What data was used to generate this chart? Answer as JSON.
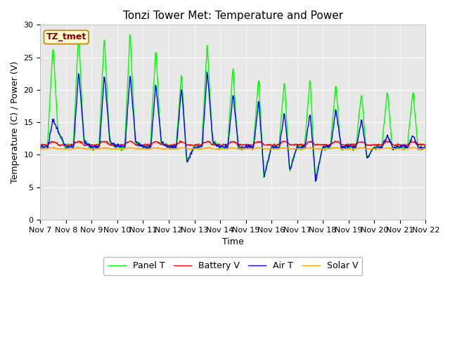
{
  "title": "Tonzi Tower Met: Temperature and Power",
  "xlabel": "Time",
  "ylabel": "Temperature (C) / Power (V)",
  "ylim": [
    0,
    30
  ],
  "yticks": [
    0,
    5,
    10,
    15,
    20,
    25,
    30
  ],
  "x_labels": [
    "Nov 7",
    "Nov 8",
    "Nov 9",
    "Nov 10",
    "Nov 11",
    "Nov 12",
    "Nov 13",
    "Nov 14",
    "Nov 15",
    "Nov 16",
    "Nov 17",
    "Nov 18",
    "Nov 19",
    "Nov 20",
    "Nov 21",
    "Nov 22"
  ],
  "panel_t_color": "#00FF00",
  "battery_v_color": "#FF0000",
  "air_t_color": "#0000FF",
  "solar_v_color": "#FFA500",
  "facecolor": "#E8E8E8",
  "legend_label_box": "TZ_tmet",
  "legend_labels": [
    "Panel T",
    "Battery V",
    "Air T",
    "Solar V"
  ],
  "title_fontsize": 11,
  "axis_fontsize": 9,
  "tick_fontsize": 8,
  "panel_peaks": [
    27,
    29,
    28.5,
    29,
    26.5,
    22.5,
    27.5,
    23.5,
    22,
    21.5,
    22,
    20.8,
    19.8,
    20,
    20
  ],
  "panel_mins": [
    13.5,
    12,
    12,
    12,
    12,
    8.8,
    12,
    11,
    6.5,
    7.5,
    6.0,
    11,
    9.5,
    11,
    11
  ],
  "air_peaks": [
    15.5,
    23,
    22.5,
    22.5,
    21,
    20.5,
    23,
    19.5,
    18.5,
    16.5,
    16.5,
    17,
    15.5,
    13,
    13
  ],
  "air_mins": [
    13.5,
    12,
    12,
    12,
    12,
    8.8,
    12,
    11,
    6.5,
    7.5,
    6.0,
    11,
    9.5,
    11,
    11
  ]
}
